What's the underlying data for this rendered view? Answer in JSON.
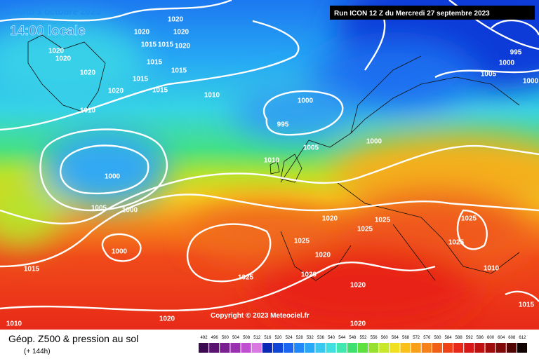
{
  "header": {
    "date": "Mardi 3 octobre 2023",
    "time": "14:00 locale",
    "run": "Run ICON 12 Z du Mercredi 27 septembre 2023"
  },
  "isobar_labels": [
    1020,
    1020,
    1020,
    1015,
    1015,
    1020,
    1020,
    1020,
    1015,
    1020,
    1015,
    1015,
    1015,
    1020,
    1010,
    1000,
    995,
    1010,
    995,
    1000,
    1005,
    1000,
    1000,
    1005,
    1010,
    1000,
    1005,
    1000,
    1020,
    1025,
    1025,
    1025,
    1025,
    1025,
    1000,
    1020,
    1015,
    1025,
    1020,
    1020,
    1010,
    1020,
    1010,
    1020,
    1015
  ],
  "footer": {
    "title": "Géop. Z500 & pression au sol",
    "lead": "(+ 144h)",
    "copyright": "Copyright © 2023 Meteociel.fr"
  },
  "legend": {
    "values": [
      492,
      496,
      500,
      504,
      508,
      512,
      516,
      520,
      524,
      528,
      532,
      536,
      540,
      544,
      548,
      552,
      556,
      560,
      564,
      568,
      572,
      576,
      580,
      584,
      588,
      592,
      596,
      600,
      604,
      608,
      612
    ],
    "colors": [
      "#3c0a50",
      "#5a1470",
      "#7a2090",
      "#9a30b0",
      "#c050d0",
      "#d878e0",
      "#0a28b4",
      "#1046d8",
      "#1a66f0",
      "#2088f8",
      "#28a8f8",
      "#38c8f0",
      "#40e0e0",
      "#40e8b0",
      "#40e070",
      "#60e040",
      "#98e030",
      "#c8e828",
      "#f0e020",
      "#f8c018",
      "#f8a018",
      "#f88018",
      "#f06018",
      "#f04018",
      "#e82818",
      "#d81818",
      "#c01010",
      "#a00c0c",
      "#800808",
      "#500404",
      "#100000"
    ]
  }
}
